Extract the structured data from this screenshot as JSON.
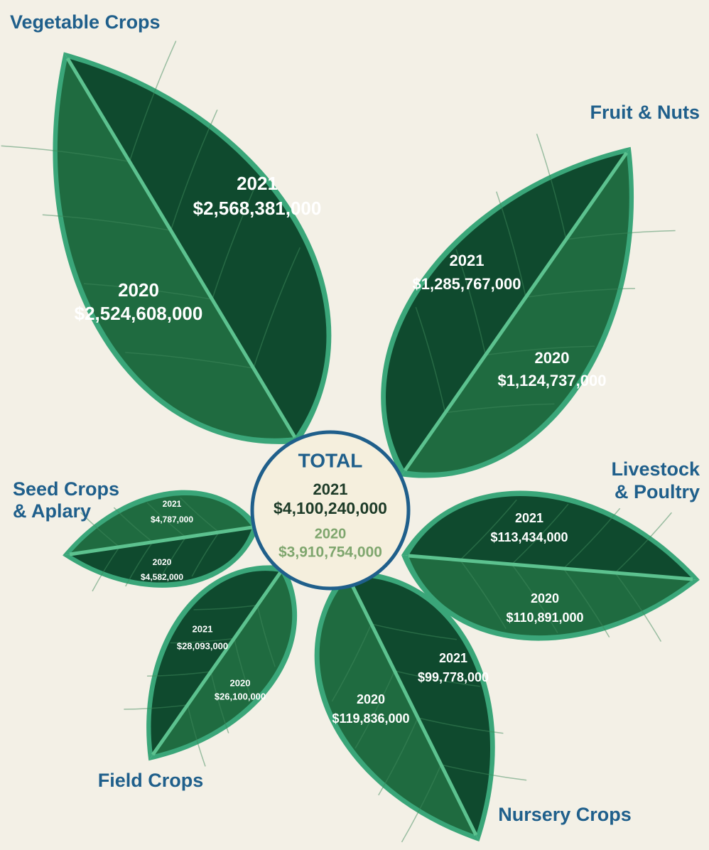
{
  "categories": [
    {
      "name": [
        "Vegetable Crops"
      ],
      "year_2021": "2021",
      "value_2021": "$2,568,381,000",
      "year_2020": "2020",
      "value_2020": "$2,524,608,000"
    },
    {
      "name": [
        "Fruit & Nuts"
      ],
      "year_2021": "2021",
      "value_2021": "$1,285,767,000",
      "year_2020": "2020",
      "value_2020": "$1,124,737,000"
    },
    {
      "name": [
        "Livestock",
        "& Poultry"
      ],
      "year_2021": "2021",
      "value_2021": "$113,434,000",
      "year_2020": "2020",
      "value_2020": "$110,891,000"
    },
    {
      "name": [
        "Nursery Crops"
      ],
      "year_2021": "2021",
      "value_2021": "$99,778,000",
      "year_2020": "2020",
      "value_2020": "$119,836,000"
    },
    {
      "name": [
        "Field Crops"
      ],
      "year_2021": "2021",
      "value_2021": "$28,093,000",
      "year_2020": "2020",
      "value_2020": "$26,100,000"
    },
    {
      "name": [
        "Seed Crops",
        "& Aplary"
      ],
      "year_2021": "2021",
      "value_2021": "$4,787,000",
      "year_2020": "2020",
      "value_2020": "$4,582,000"
    }
  ],
  "total": {
    "label": "TOTAL",
    "year_2021": "2021",
    "value_2021": "$4,100,240,000",
    "year_2020": "2020",
    "value_2020": "$3,910,754,000"
  }
}
